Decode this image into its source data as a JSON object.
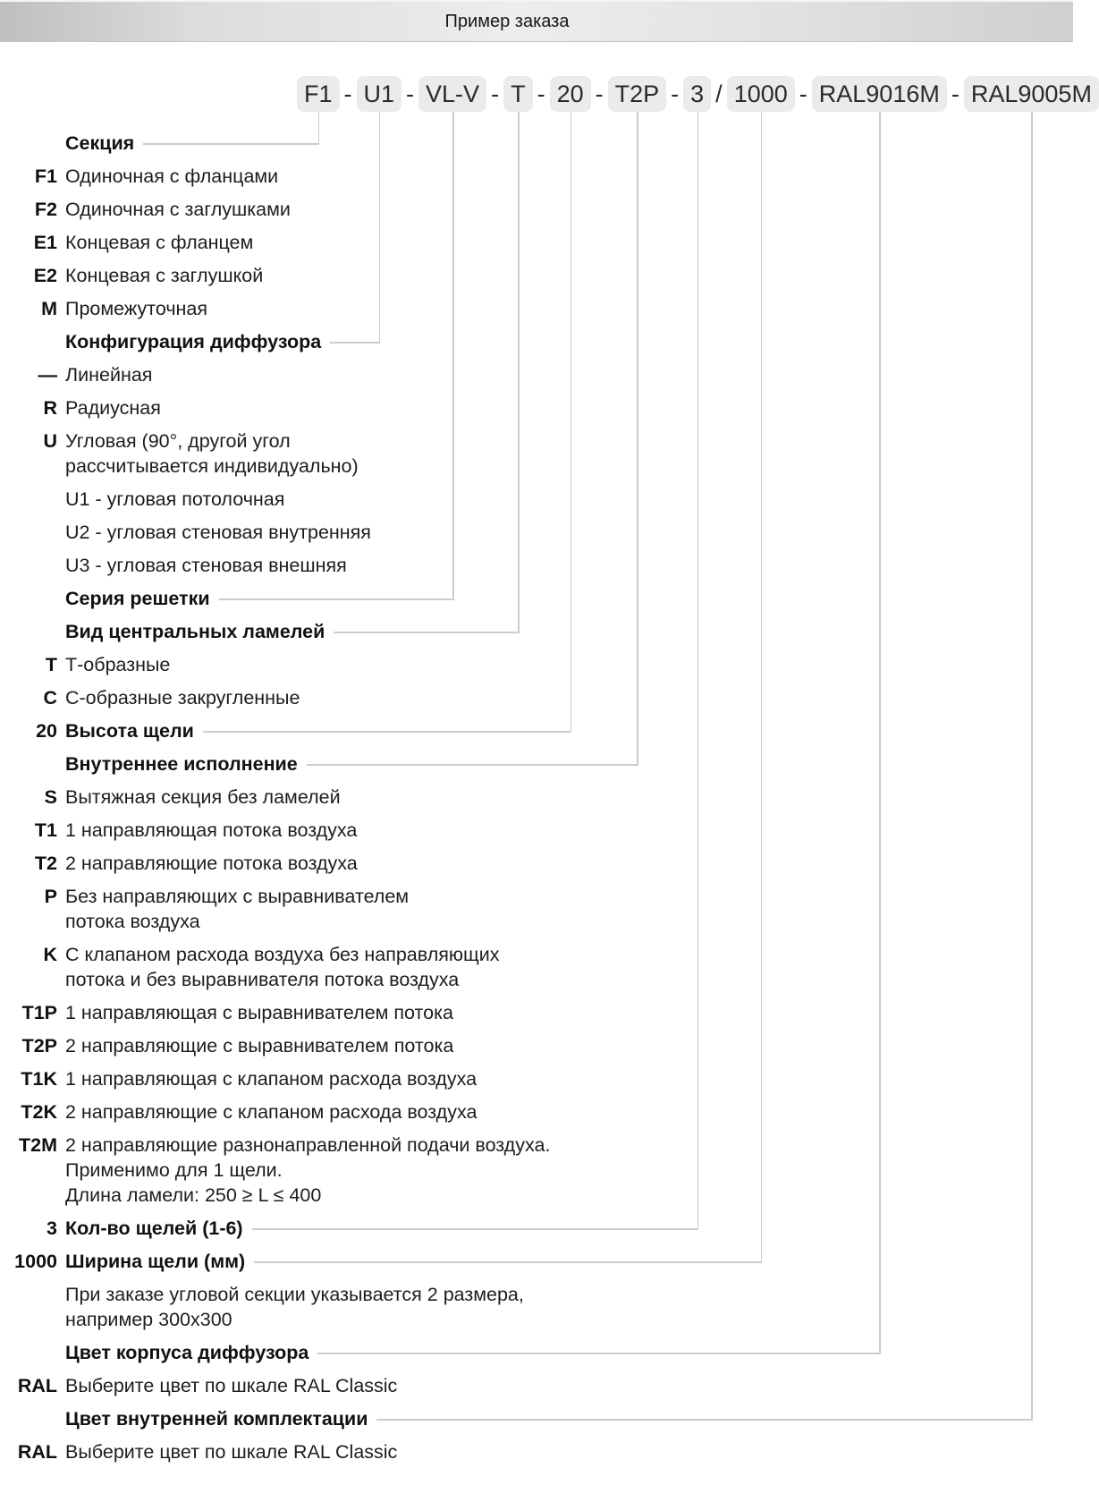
{
  "header": {
    "title": "Пример заказа"
  },
  "order_code": {
    "segments": [
      "F1",
      "U1",
      "VL-V",
      "T",
      "20",
      "T2P",
      "3",
      "1000",
      "RAL9016M",
      "RAL9005M"
    ],
    "separators": [
      "-",
      "-",
      "-",
      "-",
      "-",
      "-",
      "/",
      "-",
      "-"
    ]
  },
  "legend": {
    "rows": [
      {
        "id": "sekciya",
        "code": "",
        "style": "header",
        "text": "Секция"
      },
      {
        "id": "f1",
        "code": "F1",
        "style": "item",
        "text": "Одиночная с фланцами"
      },
      {
        "id": "f2",
        "code": "F2",
        "style": "item",
        "text": "Одиночная с заглушками"
      },
      {
        "id": "e1",
        "code": "E1",
        "style": "item",
        "text": "Концевая с фланцем"
      },
      {
        "id": "e2",
        "code": "E2",
        "style": "item",
        "text": "Концевая с заглушкой"
      },
      {
        "id": "m",
        "code": "M",
        "style": "item",
        "text": "Промежуточная"
      },
      {
        "id": "konfig",
        "code": "",
        "style": "header",
        "text": "Конфигурация диффузора"
      },
      {
        "id": "lineynaya",
        "code": "—",
        "style": "item",
        "text": "Линейная"
      },
      {
        "id": "r",
        "code": "R",
        "style": "item",
        "text": "Радиусная"
      },
      {
        "id": "u",
        "code": "U",
        "style": "item",
        "text": "Угловая (90°, другой угол\nрассчитывается индивидуально)"
      },
      {
        "id": "u1",
        "code": "",
        "style": "item",
        "text": "U1 - угловая потолочная"
      },
      {
        "id": "u2",
        "code": "",
        "style": "item",
        "text": "U2 - угловая стеновая внутренняя"
      },
      {
        "id": "u3",
        "code": "",
        "style": "item",
        "text": "U3 - угловая стеновая внешняя"
      },
      {
        "id": "seriya",
        "code": "",
        "style": "header",
        "text": "Серия решетки"
      },
      {
        "id": "vid",
        "code": "",
        "style": "header",
        "text": "Вид центральных ламелей"
      },
      {
        "id": "t",
        "code": "T",
        "style": "item",
        "text": "Т-образные"
      },
      {
        "id": "c",
        "code": "C",
        "style": "item",
        "text": "С-образные закругленные"
      },
      {
        "id": "vysota",
        "code": "20",
        "style": "header",
        "text": "Высота щели"
      },
      {
        "id": "vnutr",
        "code": "",
        "style": "header",
        "text": "Внутреннее исполнение"
      },
      {
        "id": "s",
        "code": "S",
        "style": "item",
        "text": "Вытяжная секция без ламелей"
      },
      {
        "id": "t1",
        "code": "T1",
        "style": "item",
        "text": "1 направляющая потока воздуха"
      },
      {
        "id": "t2",
        "code": "T2",
        "style": "item",
        "text": "2 направляющие потока воздуха"
      },
      {
        "id": "p",
        "code": "P",
        "style": "item",
        "text": "Без направляющих с выравнивателем\nпотока воздуха"
      },
      {
        "id": "k",
        "code": "K",
        "style": "item",
        "text": "С клапаном расхода воздуха без направляющих\nпотока и без выравнивателя потока воздуха"
      },
      {
        "id": "t1p",
        "code": "T1P",
        "style": "item",
        "text": "1 направляющая с выравнивателем потока"
      },
      {
        "id": "t2p",
        "code": "T2P",
        "style": "item",
        "text": "2 направляющие с выравнивателем потока"
      },
      {
        "id": "t1k",
        "code": "T1K",
        "style": "item",
        "text": "1 направляющая с клапаном расхода воздуха"
      },
      {
        "id": "t2k",
        "code": "T2K",
        "style": "item",
        "text": "2 направляющие с клапаном расхода воздуха"
      },
      {
        "id": "t2m",
        "code": "T2M",
        "style": "item",
        "text": "2 направляющие разнонаправленной подачи воздуха.\nПрименимо для 1 щели.\nДлина ламели: 250 ≥ L ≤ 400"
      },
      {
        "id": "kolvo",
        "code": "3",
        "style": "header",
        "text": "Кол-во щелей (1-6)"
      },
      {
        "id": "shirina",
        "code": "1000",
        "style": "header",
        "text": "Ширина щели (мм)"
      },
      {
        "id": "uglovaya-note",
        "code": "",
        "style": "item",
        "text": "При заказе угловой секции указывается 2 размера,\nнапример 300х300"
      },
      {
        "id": "cvet-korpusa",
        "code": "",
        "style": "header",
        "text": "Цвет корпуса диффузора"
      },
      {
        "id": "ral1",
        "code": "RAL",
        "style": "item",
        "text": "Выберите цвет по шкале RAL Classic"
      },
      {
        "id": "cvet-vnutr",
        "code": "",
        "style": "header",
        "text": "Цвет внутренней комплектации"
      },
      {
        "id": "ral2",
        "code": "RAL",
        "style": "item",
        "text": "Выберите цвет по шкале RAL Classic"
      }
    ]
  },
  "connectors": [
    {
      "segment": 0,
      "row": "sekciya"
    },
    {
      "segment": 1,
      "row": "konfig"
    },
    {
      "segment": 2,
      "row": "seriya"
    },
    {
      "segment": 3,
      "row": "vid"
    },
    {
      "segment": 4,
      "row": "vysota"
    },
    {
      "segment": 5,
      "row": "vnutr"
    },
    {
      "segment": 6,
      "row": "kolvo"
    },
    {
      "segment": 7,
      "row": "shirina"
    },
    {
      "segment": 8,
      "row": "cvet-korpusa"
    },
    {
      "segment": 9,
      "row": "cvet-vnutr"
    }
  ],
  "colors": {
    "code_box_bg": "#ebebeb",
    "connector_line": "#cccccc",
    "text": "#1d1d1f"
  }
}
